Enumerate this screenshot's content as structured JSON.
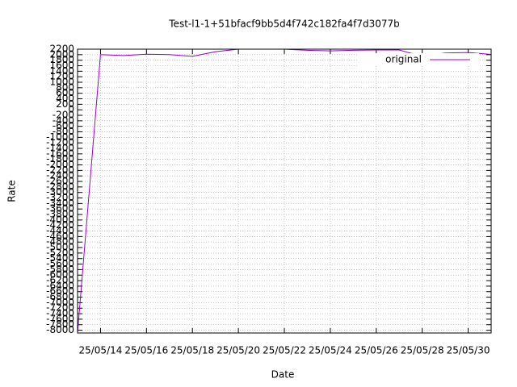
{
  "chart_data": {
    "type": "line",
    "title": "Test-l1-1+51bfacf9bb5d4f742c182fa4f7d3077b",
    "x_label": "Date",
    "y_label": "Rate",
    "x": [
      "25/05/13",
      "25/05/14",
      "25/05/15",
      "25/05/16",
      "25/05/17",
      "25/05/18",
      "25/05/19",
      "25/05/20",
      "25/05/21",
      "25/05/22",
      "25/05/23",
      "25/05/24",
      "25/05/25",
      "25/05/26",
      "25/05/27",
      "25/05/28",
      "25/05/29",
      "25/05/30",
      "25/05/31"
    ],
    "series": [
      {
        "name": "original",
        "color": "#9400d3",
        "values": [
          -8100,
          2000,
          1970,
          2020,
          2000,
          1940,
          2110,
          2200,
          2200,
          2200,
          2160,
          2140,
          2160,
          2170,
          2170,
          1940,
          2060,
          2080,
          2010
        ]
      }
    ],
    "xlim": [
      "25/05/13",
      "25/05/31"
    ],
    "xticks": [
      "25/05/14",
      "25/05/16",
      "25/05/18",
      "25/05/20",
      "25/05/22",
      "25/05/24",
      "25/05/26",
      "25/05/28",
      "25/05/30"
    ],
    "ylim": [
      -8100,
      2200
    ],
    "yticks": [
      2200,
      2000,
      1800,
      1600,
      1400,
      1200,
      1000,
      800,
      600,
      400,
      200,
      0,
      -200,
      -400,
      -600,
      -800,
      -1000,
      -1200,
      -1400,
      -1600,
      -1800,
      -2000,
      -2200,
      -2400,
      -2600,
      -2800,
      -3000,
      -3200,
      -3400,
      -3600,
      -3800,
      -4000,
      -4200,
      -4400,
      -4600,
      -4800,
      -5000,
      -5200,
      -5400,
      -5600,
      -5800,
      -6000,
      -6200,
      -6400,
      -6600,
      -6800,
      -7000,
      -7200,
      -7400,
      -7600,
      -7800,
      -8000
    ],
    "grid": true,
    "legend_position": "top-right"
  }
}
